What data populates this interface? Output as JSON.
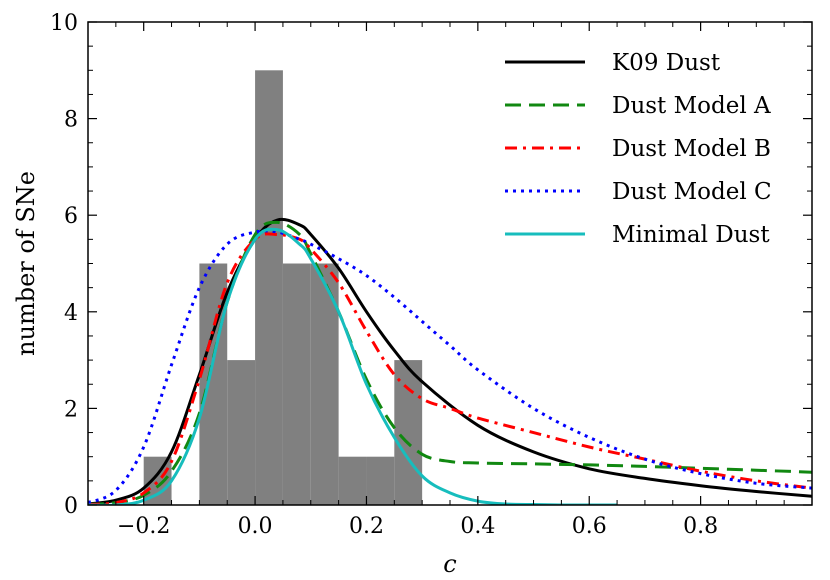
{
  "chart_data": {
    "type": "histogram+line",
    "title": "",
    "xlabel": "c",
    "ylabel": "number of SNe",
    "xlim": [
      -0.3,
      1.0
    ],
    "ylim": [
      0,
      10
    ],
    "xticks": [
      -0.2,
      0.0,
      0.2,
      0.4,
      0.6,
      0.8
    ],
    "xtick_labels": [
      "−0.2",
      "0.0",
      "0.2",
      "0.4",
      "0.6",
      "0.8"
    ],
    "yticks": [
      0,
      2,
      4,
      6,
      8,
      10
    ],
    "ytick_labels": [
      "0",
      "2",
      "4",
      "6",
      "8",
      "10"
    ],
    "histogram": {
      "color": "#808080",
      "bins": [
        {
          "x0": -0.2,
          "x1": -0.15,
          "count": 1
        },
        {
          "x0": -0.1,
          "x1": -0.05,
          "count": 5
        },
        {
          "x0": -0.05,
          "x1": 0.0,
          "count": 3
        },
        {
          "x0": 0.0,
          "x1": 0.05,
          "count": 9
        },
        {
          "x0": 0.05,
          "x1": 0.1,
          "count": 5
        },
        {
          "x0": 0.1,
          "x1": 0.15,
          "count": 5
        },
        {
          "x0": 0.15,
          "x1": 0.2,
          "count": 1
        },
        {
          "x0": 0.2,
          "x1": 0.25,
          "count": 1
        },
        {
          "x0": 0.25,
          "x1": 0.3,
          "count": 3
        }
      ]
    },
    "series": [
      {
        "name": "K09 Dust",
        "color": "#000000",
        "dash": "solid",
        "x": [
          -0.3,
          -0.25,
          -0.2,
          -0.15,
          -0.1,
          -0.05,
          0.0,
          0.04,
          0.08,
          0.1,
          0.15,
          0.2,
          0.25,
          0.3,
          0.4,
          0.5,
          0.6,
          0.7,
          0.8,
          0.9,
          1.0
        ],
        "y": [
          0.02,
          0.1,
          0.35,
          1.1,
          2.7,
          4.4,
          5.5,
          5.9,
          5.8,
          5.6,
          4.9,
          4.0,
          3.2,
          2.55,
          1.65,
          1.1,
          0.75,
          0.55,
          0.4,
          0.28,
          0.18
        ]
      },
      {
        "name": "Dust Model A",
        "color": "#118811",
        "dash": "dashed",
        "x": [
          -0.3,
          -0.25,
          -0.2,
          -0.15,
          -0.1,
          -0.05,
          0.0,
          0.04,
          0.08,
          0.1,
          0.15,
          0.2,
          0.25,
          0.3,
          0.35,
          0.4,
          0.5,
          0.6,
          0.7,
          0.8,
          0.9,
          1.0
        ],
        "y": [
          0.01,
          0.05,
          0.2,
          0.7,
          1.9,
          4.2,
          5.6,
          5.85,
          5.6,
          5.2,
          4.0,
          2.6,
          1.6,
          1.05,
          0.9,
          0.87,
          0.85,
          0.83,
          0.8,
          0.76,
          0.72,
          0.68
        ]
      },
      {
        "name": "Dust Model B",
        "color": "#ff0000",
        "dash": "dashdot",
        "x": [
          -0.3,
          -0.25,
          -0.2,
          -0.15,
          -0.1,
          -0.05,
          0.0,
          0.04,
          0.08,
          0.1,
          0.15,
          0.2,
          0.25,
          0.3,
          0.35,
          0.4,
          0.5,
          0.6,
          0.7,
          0.8,
          0.9,
          1.0
        ],
        "y": [
          0.01,
          0.05,
          0.25,
          0.9,
          2.6,
          4.6,
          5.5,
          5.6,
          5.5,
          5.3,
          4.6,
          3.6,
          2.7,
          2.2,
          2.0,
          1.8,
          1.5,
          1.2,
          0.95,
          0.7,
          0.5,
          0.35
        ]
      },
      {
        "name": "Dust Model C",
        "color": "#0000ff",
        "dash": "dotted",
        "x": [
          -0.3,
          -0.25,
          -0.2,
          -0.15,
          -0.1,
          -0.05,
          0.0,
          0.04,
          0.08,
          0.1,
          0.15,
          0.2,
          0.25,
          0.3,
          0.35,
          0.4,
          0.5,
          0.6,
          0.7,
          0.8,
          0.9,
          1.0
        ],
        "y": [
          0.05,
          0.3,
          1.2,
          2.9,
          4.5,
          5.4,
          5.65,
          5.65,
          5.5,
          5.4,
          5.1,
          4.75,
          4.3,
          3.8,
          3.3,
          2.8,
          2.0,
          1.4,
          0.95,
          0.65,
          0.45,
          0.35
        ]
      },
      {
        "name": "Minimal Dust",
        "color": "#17bdbd",
        "dash": "solid",
        "x": [
          -0.3,
          -0.25,
          -0.2,
          -0.15,
          -0.1,
          -0.05,
          0.0,
          0.04,
          0.08,
          0.1,
          0.15,
          0.2,
          0.25,
          0.3,
          0.35,
          0.4,
          0.45,
          0.5,
          0.55,
          0.6,
          0.65
        ],
        "y": [
          0.0,
          0.0,
          0.1,
          0.5,
          1.8,
          4.2,
          5.5,
          5.7,
          5.4,
          5.1,
          4.0,
          2.5,
          1.4,
          0.6,
          0.25,
          0.08,
          0.02,
          0.01,
          0.0,
          0.0,
          0.0
        ]
      }
    ],
    "legend_position": "top-right"
  }
}
